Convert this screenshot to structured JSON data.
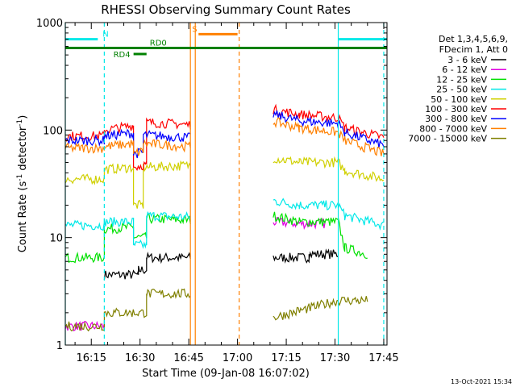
{
  "chart_data": {
    "type": "line",
    "title": "RHESSI Observing Summary Count Rates",
    "xlabel": "Start Time (09-Jan-08 16:07:02)",
    "ylabel_main": "Count Rate (s",
    "ylabel_sup1": "-1",
    "ylabel_mid": " detector",
    "ylabel_sup2": "-1",
    "ylabel_end": ")",
    "footer": "13-Oct-2021 15:34",
    "y_scale": "log",
    "ylim": [
      1,
      1000
    ],
    "xlim_minutes": [
      0,
      99
    ],
    "x_ticks": [
      {
        "label": "16:15",
        "min": 8
      },
      {
        "label": "16:30",
        "min": 23
      },
      {
        "label": "16:45",
        "min": 38
      },
      {
        "label": "17:00",
        "min": 53
      },
      {
        "label": "17:15",
        "min": 68
      },
      {
        "label": "17:30",
        "min": 83
      },
      {
        "label": "17:45",
        "min": 98
      }
    ],
    "y_ticks": [
      {
        "label": "1",
        "v": 1
      },
      {
        "label": "10",
        "v": 10
      },
      {
        "label": "100",
        "v": 100
      },
      {
        "label": "1000",
        "v": 1000
      }
    ],
    "legend_header": [
      "Det 1,3,4,5,6,9,",
      "FDecim 1, Att 0"
    ],
    "series": [
      {
        "name": "3 - 6 keV",
        "color": "#000000",
        "segments": [
          [
            [
              12,
              4.5
            ],
            [
              22.5,
              4.5
            ],
            [
              22.5,
              5
            ],
            [
              25,
              5
            ],
            [
              25,
              6.5
            ],
            [
              38.5,
              6.5
            ]
          ],
          [
            [
              64,
              6.5
            ],
            [
              75,
              6.5
            ],
            [
              75,
              7
            ],
            [
              84,
              7
            ]
          ]
        ]
      },
      {
        "name": "6 - 12 keV",
        "color": "#e000e0",
        "segments": [
          [
            [
              0,
              1.5
            ],
            [
              12,
              1.5
            ]
          ],
          [
            [
              64,
              14
            ],
            [
              72,
              13.5
            ],
            [
              80,
              13.5
            ]
          ]
        ]
      },
      {
        "name": "12 - 25 keV",
        "color": "#00e000",
        "segments": [
          [
            [
              0,
              6.5
            ],
            [
              12,
              6.5
            ],
            [
              12,
              12
            ],
            [
              21,
              12.5
            ],
            [
              21,
              10
            ],
            [
              25,
              10
            ],
            [
              25,
              15
            ],
            [
              38.5,
              14.5
            ]
          ],
          [
            [
              64,
              16
            ],
            [
              72,
              14
            ],
            [
              84,
              14
            ],
            [
              86,
              8
            ],
            [
              93,
              7
            ]
          ]
        ]
      },
      {
        "name": "25 - 50 keV",
        "color": "#00e8e8",
        "segments": [
          [
            [
              0,
              13
            ],
            [
              12,
              13
            ],
            [
              12,
              14
            ],
            [
              21,
              14
            ],
            [
              21,
              8.5
            ],
            [
              25,
              8.5
            ],
            [
              25,
              16
            ],
            [
              38.5,
              15.5
            ]
          ],
          [
            [
              64,
              22
            ],
            [
              72,
              20
            ],
            [
              84,
              20
            ],
            [
              86,
              16
            ],
            [
              98,
              13
            ]
          ]
        ]
      },
      {
        "name": "50 - 100 keV",
        "color": "#d0d000",
        "segments": [
          [
            [
              0,
              35
            ],
            [
              12,
              35
            ],
            [
              12,
              43
            ],
            [
              21,
              45
            ],
            [
              21,
              20
            ],
            [
              24,
              20
            ],
            [
              24,
              45
            ],
            [
              38.5,
              47
            ]
          ],
          [
            [
              64,
              55
            ],
            [
              72,
              50
            ],
            [
              84,
              50
            ],
            [
              86,
              42
            ],
            [
              98,
              35
            ]
          ]
        ]
      },
      {
        "name": "100 - 300 keV",
        "color": "#ff0000",
        "segments": [
          [
            [
              0,
              88
            ],
            [
              12,
              88
            ],
            [
              12,
              100
            ],
            [
              21,
              110
            ],
            [
              21,
              45
            ],
            [
              25,
              48
            ],
            [
              25,
              118
            ],
            [
              38.5,
              112
            ]
          ],
          [
            [
              64,
              155
            ],
            [
              72,
              140
            ],
            [
              84,
              130
            ],
            [
              86,
              105
            ],
            [
              98,
              85
            ]
          ]
        ]
      },
      {
        "name": "300 - 800 keV",
        "color": "#0000ff",
        "segments": [
          [
            [
              0,
              80
            ],
            [
              12,
              80
            ],
            [
              12,
              88
            ],
            [
              21,
              94
            ],
            [
              21,
              60
            ],
            [
              24,
              62
            ],
            [
              24,
              90
            ],
            [
              38.5,
              85
            ]
          ],
          [
            [
              64,
              140
            ],
            [
              72,
              122
            ],
            [
              84,
              115
            ],
            [
              86,
              95
            ],
            [
              98,
              72
            ]
          ]
        ]
      },
      {
        "name": "800 - 7000 keV",
        "color": "#ff8000",
        "segments": [
          [
            [
              0,
              68
            ],
            [
              12,
              68
            ],
            [
              12,
              70
            ],
            [
              21,
              75
            ],
            [
              21,
              60
            ],
            [
              24,
              64
            ],
            [
              24,
              75
            ],
            [
              38.5,
              70
            ]
          ],
          [
            [
              64,
              120
            ],
            [
              72,
              105
            ],
            [
              84,
              95
            ],
            [
              86,
              80
            ],
            [
              98,
              60
            ]
          ]
        ]
      },
      {
        "name": "7000 - 15000 keV",
        "color": "#808000",
        "segments": [
          [
            [
              0,
              1.5
            ],
            [
              12,
              1.5
            ],
            [
              12,
              2
            ],
            [
              25,
              2
            ],
            [
              25,
              3
            ],
            [
              38.5,
              3
            ]
          ],
          [
            [
              64,
              1.8
            ],
            [
              75,
              2.2
            ],
            [
              84,
              2.6
            ],
            [
              93,
              2.6
            ]
          ]
        ]
      }
    ],
    "flags": [
      {
        "label": "N",
        "color": "#00e8e8",
        "y": 700,
        "segments": [
          [
            0,
            10
          ],
          [
            84,
            99
          ]
        ]
      },
      {
        "label": "RD0",
        "color": "#008000",
        "y": 580,
        "segments": [
          [
            0,
            99
          ]
        ]
      },
      {
        "label": "RD4",
        "color": "#008000",
        "y": 510,
        "segments": [
          [
            21,
            25
          ]
        ]
      },
      {
        "label": "S",
        "color": "#ff8000",
        "y": 780,
        "segments": [
          [
            41,
            53
          ]
        ]
      }
    ],
    "vlines": [
      {
        "min": 0,
        "color": "#00e8e8",
        "dashed": false
      },
      {
        "min": 12,
        "color": "#00e8e8",
        "dashed": true
      },
      {
        "min": 38.5,
        "color": "#ff8000",
        "dashed": false
      },
      {
        "min": 40,
        "color": "#ff8000",
        "dashed": false
      },
      {
        "min": 53.5,
        "color": "#ff8000",
        "dashed": true
      },
      {
        "min": 84,
        "color": "#00e8e8",
        "dashed": false
      },
      {
        "min": 98,
        "color": "#00e8e8",
        "dashed": true
      }
    ]
  }
}
